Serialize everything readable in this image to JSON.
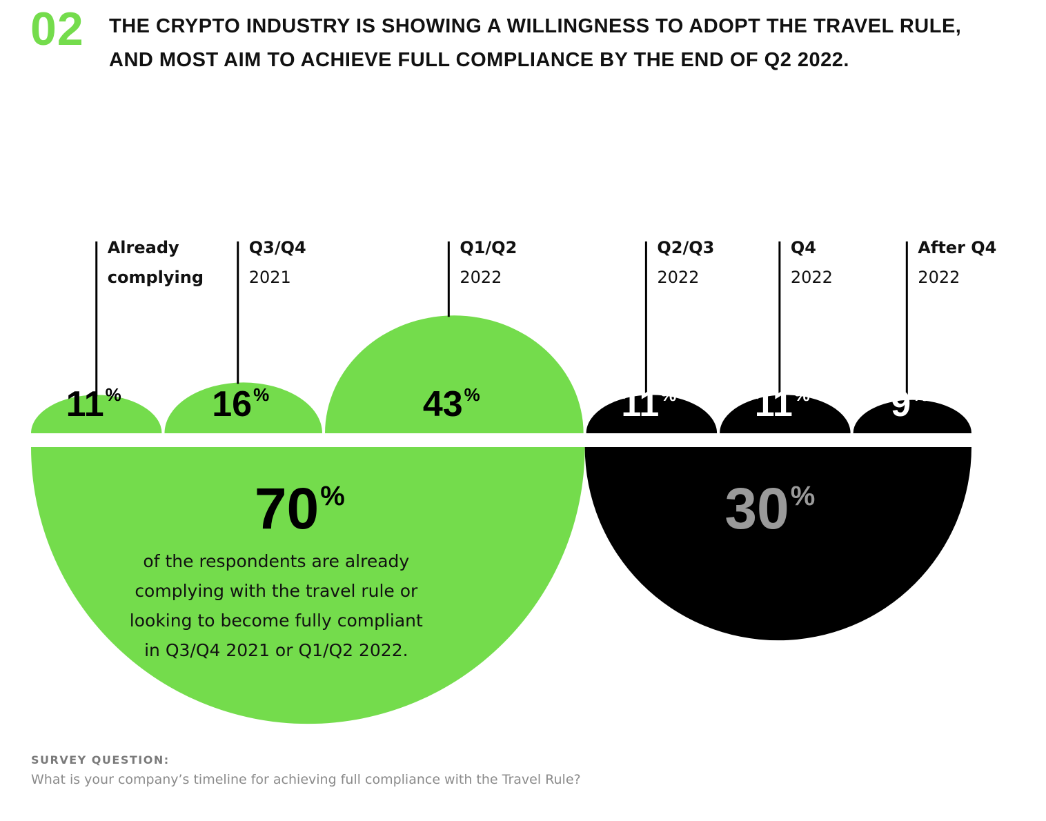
{
  "header": {
    "number": "02",
    "headline": "THE CRYPTO INDUSTRY IS SHOWING A WILLINGNESS TO ADOPT THE TRAVEL RULE, AND MOST AIM TO ACHIEVE FULL COMPLIANCE BY THE END OF Q2 2022."
  },
  "colors": {
    "green": "#74dc4c",
    "black": "#000000",
    "grey_value": "#9a9a9a"
  },
  "chart_data": {
    "type": "semicircle-bubble",
    "unit": "%",
    "categories": [
      {
        "label_bold": "Already",
        "label_second": "complying",
        "second_bold": true,
        "value": 11,
        "group": "green"
      },
      {
        "label_bold": "Q3/Q4",
        "label_second": "2021",
        "second_bold": false,
        "value": 16,
        "group": "green"
      },
      {
        "label_bold": "Q1/Q2",
        "label_second": "2022",
        "second_bold": false,
        "value": 43,
        "group": "green"
      },
      {
        "label_bold": "Q2/Q3",
        "label_second": "2022",
        "second_bold": false,
        "value": 11,
        "group": "black"
      },
      {
        "label_bold": "Q4",
        "label_second": "2022",
        "second_bold": false,
        "value": 11,
        "group": "black"
      },
      {
        "label_bold": "After Q4",
        "label_second": "2022",
        "second_bold": false,
        "value": 9,
        "group": "black"
      }
    ],
    "totals": [
      {
        "value": 70,
        "group": "green",
        "caption": [
          "of the respondents are already",
          "complying with the travel rule or",
          "looking to become fully compliant",
          "in Q3/Q4 2021 or Q1/Q2 2022."
        ]
      },
      {
        "value": 30,
        "group": "black",
        "caption": []
      }
    ]
  },
  "footer": {
    "label": "SURVEY QUESTION:",
    "question": "What is your company’s timeline for achieving full compliance with the Travel Rule?"
  }
}
